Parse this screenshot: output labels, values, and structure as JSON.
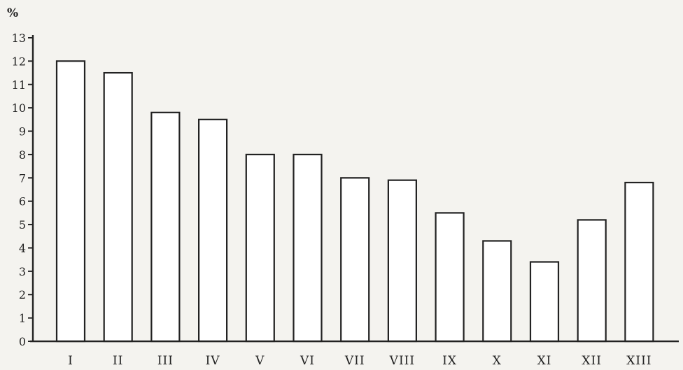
{
  "chart_data": {
    "type": "bar",
    "unit_label": "%",
    "categories": [
      "I",
      "II",
      "III",
      "IV",
      "V",
      "VI",
      "VII",
      "VIII",
      "IX",
      "X",
      "XI",
      "XII",
      "XIII"
    ],
    "values": [
      12.0,
      11.5,
      9.8,
      9.5,
      8.0,
      8.0,
      7.0,
      6.9,
      5.5,
      4.3,
      3.4,
      5.2,
      6.8
    ],
    "ylim": [
      0,
      13
    ],
    "yticks": [
      0,
      1,
      2,
      3,
      4,
      5,
      6,
      7,
      8,
      9,
      10,
      11,
      12,
      13
    ],
    "grid": false,
    "legend": "none",
    "colors": {
      "bar_fill": "#ffffff",
      "stroke": "#222222",
      "background": "#f4f3ef"
    }
  }
}
